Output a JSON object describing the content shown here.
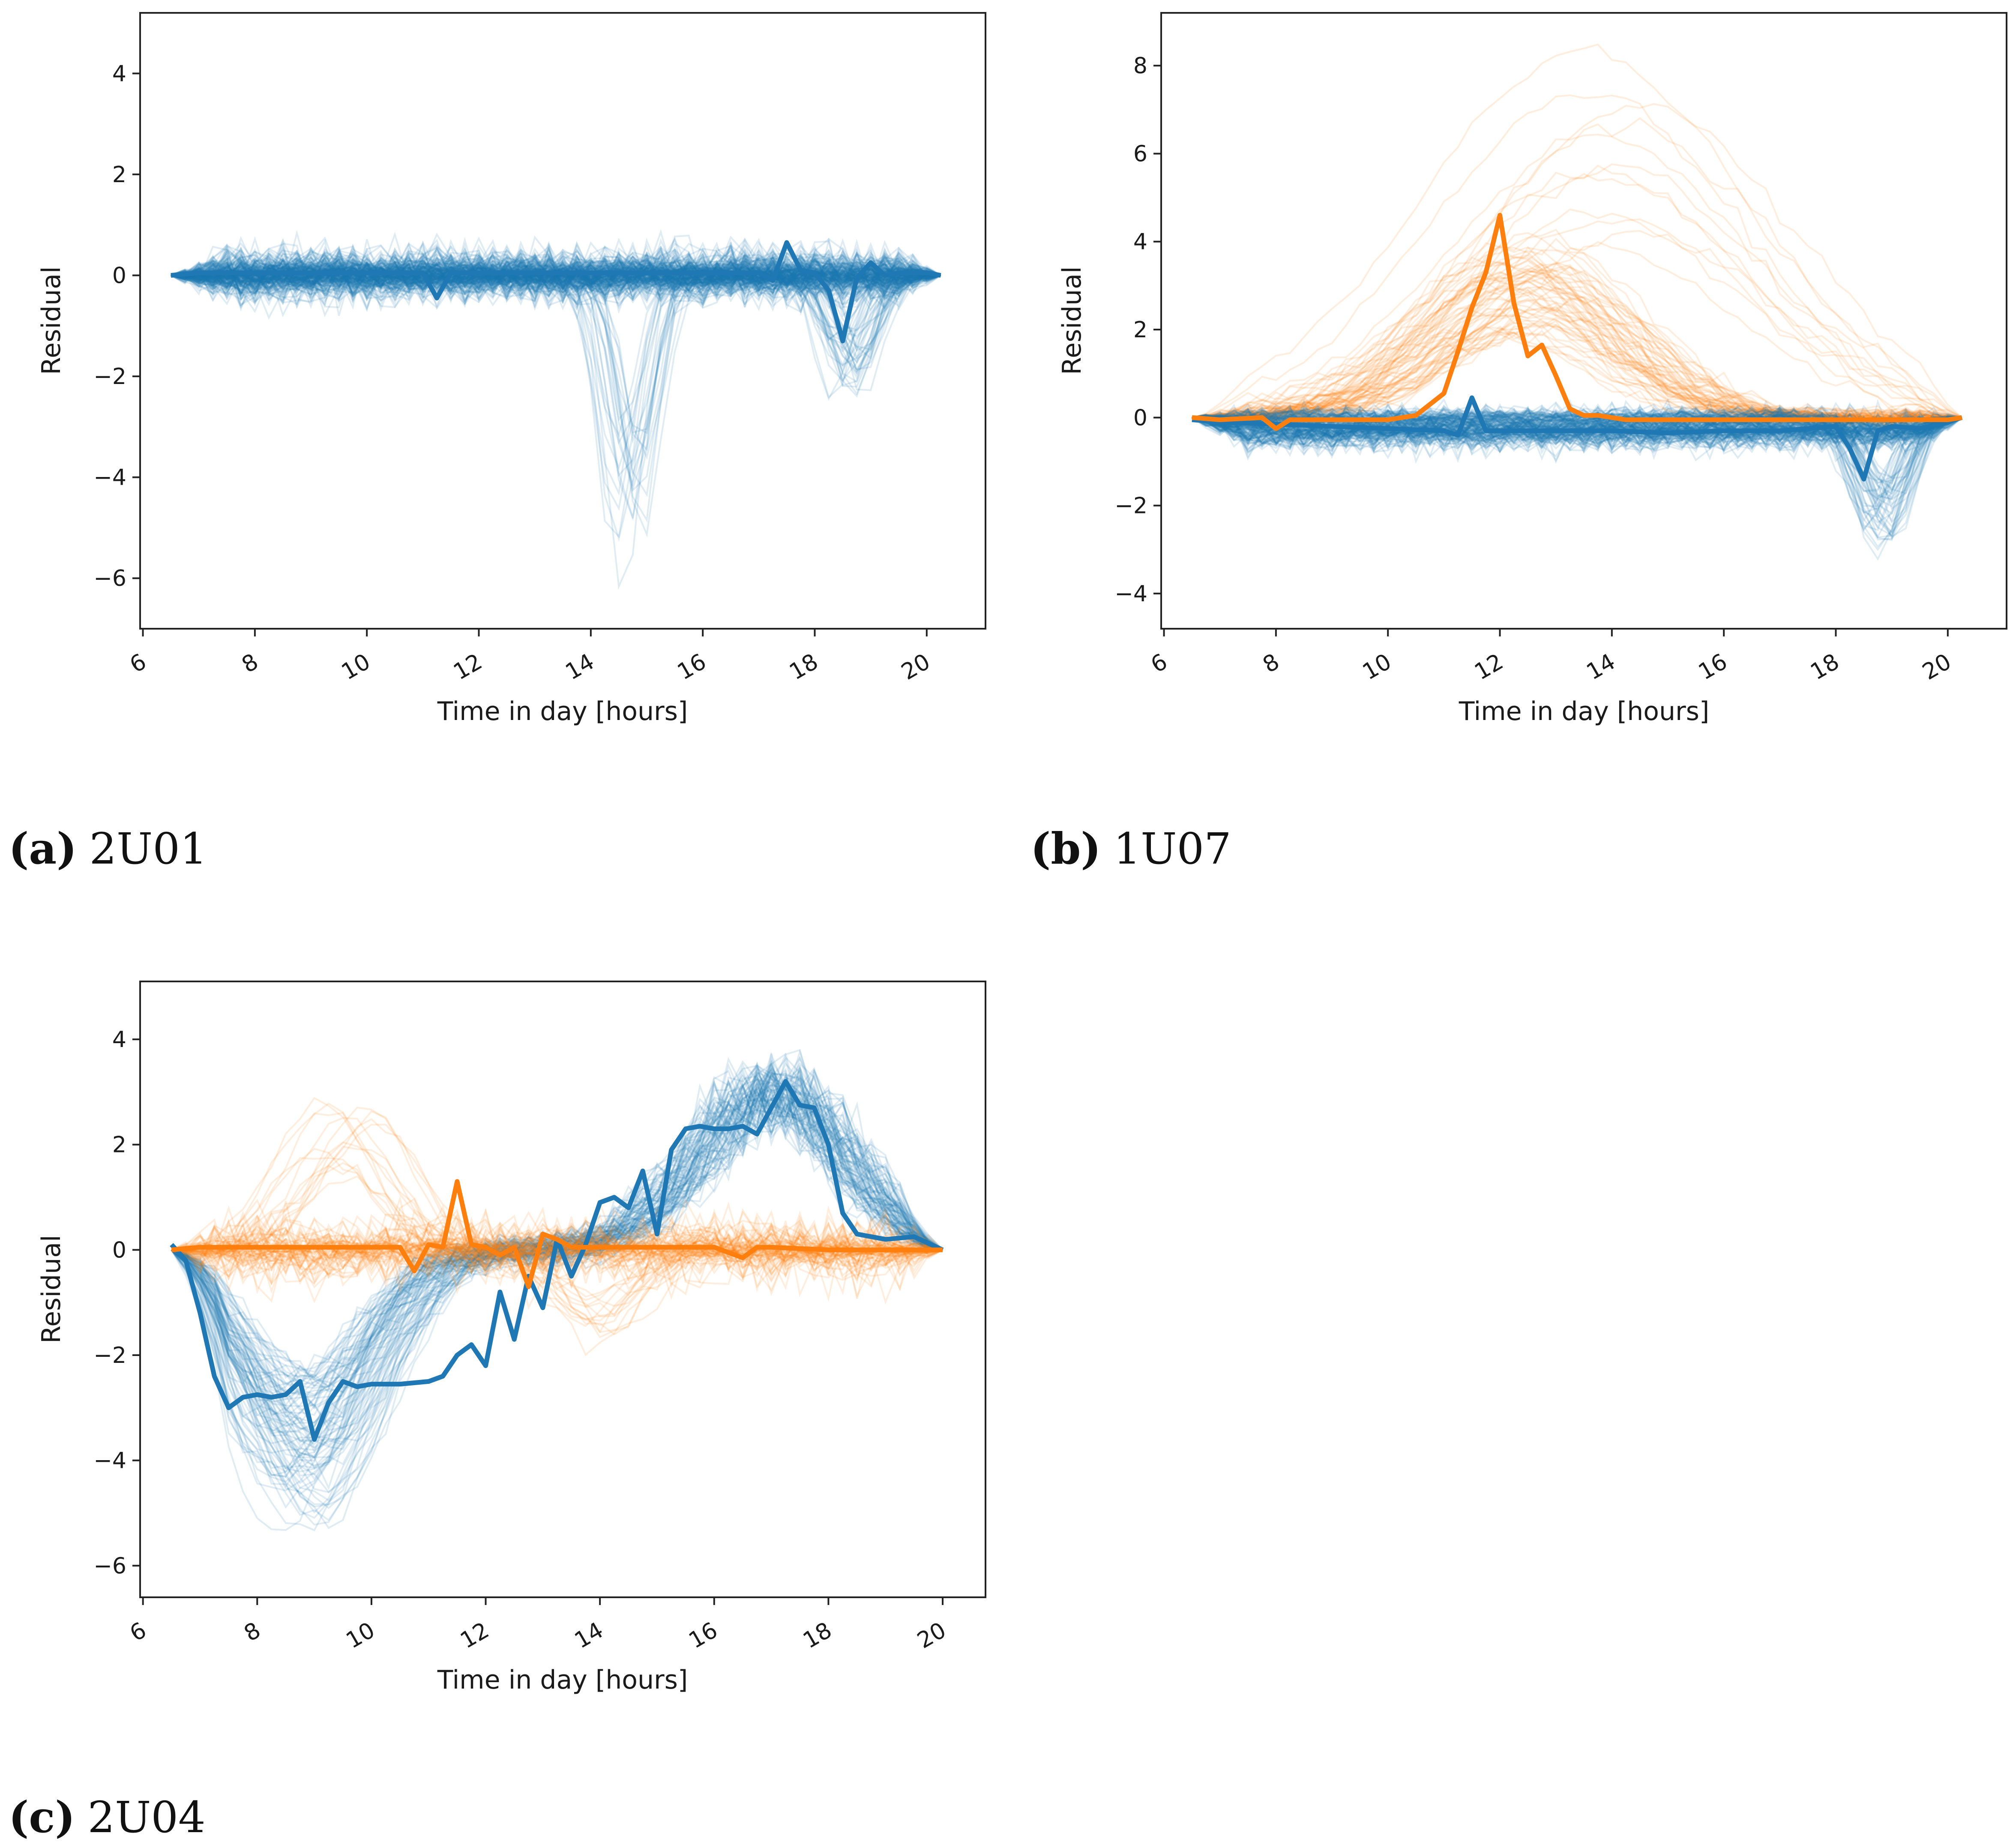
{
  "colors": {
    "blue": "#1f77b4",
    "orange": "#ff7f0e"
  },
  "chart_data": [
    {
      "id": "a",
      "type": "line",
      "caption_letter": "(a)",
      "caption_name": "2U01",
      "xlabel": "Time in day [hours]",
      "ylabel": "Residual",
      "xlim": [
        5.95,
        21.05
      ],
      "ylim": [
        -7.0,
        5.2
      ],
      "xticks": [
        6,
        8,
        10,
        12,
        14,
        16,
        18,
        20
      ],
      "yticks": [
        -6,
        -4,
        -2,
        0,
        2,
        4
      ],
      "highlight_series": [
        {
          "name": "blue highlighted day",
          "color": "blue",
          "x": [
            6.5,
            7.0,
            8.0,
            9.0,
            10.0,
            11.0,
            11.25,
            11.5,
            12.0,
            13.0,
            14.0,
            15.0,
            16.0,
            17.0,
            17.25,
            17.5,
            17.75,
            18.0,
            18.25,
            18.5,
            18.75,
            19.0,
            19.25,
            19.5,
            20.0,
            20.25
          ],
          "y": [
            0.0,
            0.05,
            0.05,
            0.05,
            0.05,
            0.05,
            -0.45,
            0.05,
            0.05,
            0.05,
            0.05,
            0.05,
            0.05,
            0.05,
            -0.1,
            0.65,
            0.1,
            0.05,
            -0.3,
            -1.3,
            -0.05,
            0.25,
            0.0,
            0.05,
            0.05,
            0.0
          ]
        }
      ],
      "background_series": [
        {
          "color": "blue",
          "count": 170,
          "shape": "noise",
          "amplitude": 0.7,
          "seed": 11
        },
        {
          "color": "blue",
          "count": 25,
          "shape": "dip",
          "center": 14.7,
          "width": 0.6,
          "depth": -4.5,
          "seed": 12
        },
        {
          "color": "blue",
          "count": 40,
          "shape": "dip",
          "center": 18.6,
          "width": 0.6,
          "depth": -1.8,
          "seed": 13
        }
      ]
    },
    {
      "id": "b",
      "type": "line",
      "caption_letter": "(b)",
      "caption_name": "1U07",
      "xlabel": "Time in day [hours]",
      "ylabel": "Residual",
      "xlim": [
        5.95,
        21.05
      ],
      "ylim": [
        -4.8,
        9.2
      ],
      "xticks": [
        6,
        8,
        10,
        12,
        14,
        16,
        18,
        20
      ],
      "yticks": [
        -4,
        -2,
        0,
        2,
        4,
        6,
        8
      ],
      "highlight_series": [
        {
          "name": "blue highlighted day",
          "color": "blue",
          "x": [
            6.5,
            7.0,
            8.0,
            9.0,
            10.0,
            11.0,
            11.25,
            11.5,
            11.75,
            12.0,
            13.0,
            14.0,
            15.0,
            16.0,
            17.0,
            17.5,
            18.0,
            18.25,
            18.5,
            18.75,
            19.0,
            19.5,
            20.0,
            20.25
          ],
          "y": [
            -0.05,
            -0.1,
            -0.15,
            -0.2,
            -0.25,
            -0.3,
            -0.4,
            0.45,
            -0.3,
            -0.3,
            -0.3,
            -0.3,
            -0.35,
            -0.3,
            -0.3,
            -0.25,
            -0.2,
            -0.7,
            -1.4,
            -0.3,
            -0.2,
            -0.25,
            -0.1,
            0.0
          ]
        },
        {
          "name": "orange highlighted day",
          "color": "orange",
          "x": [
            6.5,
            7.0,
            7.75,
            8.0,
            8.25,
            9.0,
            10.0,
            10.5,
            11.0,
            11.25,
            11.5,
            11.75,
            12.0,
            12.25,
            12.5,
            12.75,
            13.0,
            13.25,
            13.5,
            13.75,
            14.0,
            14.25,
            15.0,
            16.0,
            17.0,
            18.0,
            19.0,
            20.0,
            20.25
          ],
          "y": [
            0.0,
            -0.05,
            0.0,
            -0.25,
            -0.05,
            -0.05,
            -0.05,
            0.05,
            0.55,
            1.5,
            2.5,
            3.3,
            4.6,
            2.6,
            1.4,
            1.65,
            0.95,
            0.2,
            0.05,
            0.05,
            0.0,
            -0.05,
            -0.05,
            -0.05,
            -0.05,
            -0.05,
            -0.05,
            -0.05,
            0.0
          ]
        }
      ],
      "background_series": [
        {
          "color": "orange",
          "count": 60,
          "shape": "hump",
          "center": 12.5,
          "width": 2.2,
          "height": 3.0,
          "seed": 21
        },
        {
          "color": "orange",
          "count": 12,
          "shape": "hump",
          "center": 14.0,
          "width": 3.5,
          "height": 6.0,
          "seed": 22
        },
        {
          "color": "blue",
          "count": 120,
          "shape": "noise",
          "amplitude": 0.6,
          "offset": -0.3,
          "seed": 23
        },
        {
          "color": "blue",
          "count": 50,
          "shape": "dip",
          "center": 18.8,
          "width": 0.7,
          "depth": -2.2,
          "seed": 24
        }
      ]
    },
    {
      "id": "c",
      "type": "line",
      "caption_letter": "(c)",
      "caption_name": "2U04",
      "xlabel": "Time in day [hours]",
      "ylabel": "Residual",
      "xlim": [
        5.95,
        20.75
      ],
      "ylim": [
        -6.6,
        5.1
      ],
      "xticks": [
        6,
        8,
        10,
        12,
        14,
        16,
        18,
        20
      ],
      "yticks": [
        -6,
        -4,
        -2,
        0,
        2,
        4
      ],
      "highlight_series": [
        {
          "name": "blue highlighted day",
          "color": "blue",
          "x": [
            6.5,
            6.75,
            7.0,
            7.25,
            7.5,
            7.75,
            8.0,
            8.25,
            8.5,
            8.75,
            9.0,
            9.25,
            9.5,
            9.75,
            10.0,
            10.5,
            11.0,
            11.25,
            11.5,
            11.75,
            12.0,
            12.25,
            12.5,
            12.75,
            13.0,
            13.25,
            13.5,
            13.75,
            14.0,
            14.25,
            14.5,
            14.75,
            15.0,
            15.25,
            15.5,
            15.75,
            16.0,
            16.25,
            16.5,
            16.75,
            17.0,
            17.25,
            17.5,
            17.75,
            18.0,
            18.25,
            18.5,
            19.0,
            19.5,
            20.0
          ],
          "y": [
            0.1,
            -0.2,
            -1.2,
            -2.4,
            -3.0,
            -2.8,
            -2.75,
            -2.8,
            -2.75,
            -2.5,
            -3.6,
            -2.9,
            -2.5,
            -2.6,
            -2.55,
            -2.55,
            -2.5,
            -2.4,
            -2.0,
            -1.8,
            -2.2,
            -0.8,
            -1.7,
            -0.5,
            -1.1,
            0.2,
            -0.5,
            0.1,
            0.9,
            1.0,
            0.8,
            1.5,
            0.3,
            1.9,
            2.3,
            2.35,
            2.3,
            2.3,
            2.35,
            2.2,
            2.7,
            3.2,
            2.75,
            2.7,
            2.0,
            0.7,
            0.3,
            0.2,
            0.25,
            0.0
          ]
        },
        {
          "name": "orange highlighted day",
          "color": "orange",
          "x": [
            6.5,
            7.0,
            8.0,
            9.0,
            9.5,
            10.0,
            10.5,
            10.75,
            11.0,
            11.25,
            11.5,
            11.75,
            12.0,
            12.25,
            12.5,
            12.75,
            13.0,
            13.25,
            13.5,
            14.0,
            15.0,
            16.0,
            16.5,
            16.75,
            17.0,
            18.0,
            19.0,
            20.0
          ],
          "y": [
            0.0,
            0.05,
            0.05,
            0.05,
            0.05,
            0.05,
            0.05,
            -0.4,
            0.1,
            0.05,
            1.3,
            0.1,
            0.05,
            -0.1,
            0.05,
            -0.7,
            0.3,
            0.2,
            0.05,
            0.05,
            0.05,
            0.05,
            -0.15,
            0.05,
            0.05,
            0.0,
            0.0,
            0.0
          ]
        }
      ],
      "background_series": [
        {
          "color": "blue",
          "count": 90,
          "shape": "wave",
          "trough": -3.8,
          "peak": 3.3,
          "seed": 31
        },
        {
          "color": "orange",
          "count": 45,
          "shape": "noise",
          "amplitude": 0.9,
          "seed": 32
        },
        {
          "color": "orange",
          "count": 15,
          "shape": "hump",
          "center": 9.5,
          "width": 1.1,
          "height": 2.2,
          "seed": 33
        },
        {
          "color": "orange",
          "count": 15,
          "shape": "dip",
          "center": 14.0,
          "width": 1.2,
          "depth": -1.4,
          "seed": 34
        }
      ]
    }
  ]
}
